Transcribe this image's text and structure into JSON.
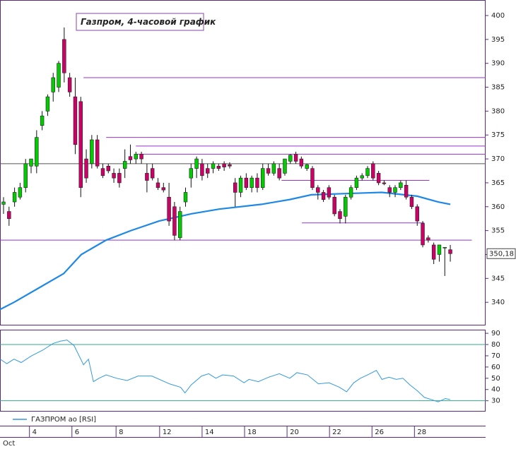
{
  "chart_data": [
    {
      "type": "candlestick",
      "title": "Газпром, 4-часовой график",
      "open": [
        360.5,
        359,
        361,
        362,
        364,
        368.5,
        368.5,
        377,
        380,
        384,
        385,
        395,
        387,
        383,
        382,
        370,
        369,
        374,
        368,
        368.5,
        367,
        367,
        368,
        370.5,
        370,
        371,
        367,
        368,
        365,
        364,
        362,
        360,
        353.5,
        361,
        366,
        368,
        369,
        368,
        368,
        368.5,
        369,
        368.8,
        365,
        363,
        366,
        364,
        366,
        364,
        368,
        367,
        368,
        367,
        369.5,
        371,
        370,
        368,
        368,
        364,
        363,
        364,
        362,
        359,
        358,
        362,
        364,
        366,
        366.5,
        369,
        367,
        365,
        364,
        363,
        364,
        364.5,
        362,
        360,
        356.5,
        353.5,
        352,
        350,
        351.5,
        351
      ],
      "high": [
        362,
        360,
        364,
        365,
        370,
        370,
        376,
        380,
        383.5,
        388,
        390.5,
        397.5,
        388,
        387,
        383,
        372,
        375,
        375,
        369,
        369,
        368,
        368,
        372,
        373,
        371.5,
        371.5,
        369,
        369,
        366,
        365,
        365,
        361,
        360,
        364,
        369,
        370.5,
        370,
        369,
        369.5,
        369,
        369.5,
        369.3,
        366,
        366.5,
        367,
        366.5,
        367,
        369,
        369,
        369.5,
        369,
        370,
        371,
        371.5,
        370.5,
        369,
        368.5,
        364.5,
        363.5,
        364.5,
        362.5,
        359.5,
        362.5,
        364.5,
        366.5,
        367,
        368.5,
        369.5,
        367.5,
        365.5,
        364.5,
        364.5,
        365.5,
        365.5,
        362.5,
        360.5,
        357,
        354,
        352.5,
        352,
        351.5,
        352
      ],
      "low": [
        358.5,
        356,
        360,
        361.5,
        363,
        367,
        367,
        376,
        379,
        382,
        384,
        386,
        383,
        371,
        362,
        365,
        368,
        368,
        366,
        367,
        365,
        364,
        366,
        369,
        369,
        369,
        363,
        365.5,
        363.5,
        363,
        356,
        353,
        353,
        360,
        364,
        366,
        365.5,
        366,
        367,
        367.5,
        367.5,
        368,
        360,
        362,
        363.5,
        363,
        363,
        363.5,
        366.5,
        366.5,
        365.5,
        366.5,
        369,
        369,
        368,
        367.5,
        363.5,
        361.5,
        361,
        361.5,
        358,
        356.5,
        356.5,
        361.5,
        363.5,
        365.5,
        366,
        365.5,
        364.5,
        364.5,
        362,
        362,
        363.5,
        361.5,
        359.5,
        356,
        351.5,
        352.5,
        348,
        348.5,
        345.5,
        348.5
      ],
      "close": [
        361,
        357.5,
        363,
        364,
        369,
        370,
        374.5,
        379,
        383,
        387,
        390,
        388,
        384,
        373,
        364,
        366,
        374,
        368.5,
        366.5,
        367.5,
        366,
        365,
        369.5,
        369.8,
        371,
        370,
        365.5,
        366,
        364,
        363.5,
        357,
        354,
        359,
        363,
        368,
        370,
        366.5,
        367,
        369,
        368,
        368.3,
        368.5,
        363,
        366,
        364,
        366,
        364,
        368,
        367,
        369,
        366,
        370,
        370.8,
        369.5,
        368.5,
        368.8,
        364,
        363,
        361.5,
        362,
        358.5,
        357.5,
        362,
        364,
        366,
        366.5,
        368,
        366,
        365,
        364.8,
        363,
        364,
        365,
        362,
        360,
        357,
        352,
        353,
        349,
        352,
        351.5,
        350.18
      ],
      "up_color": "#00cc00",
      "down_color": "#cc0066",
      "ma": {
        "color": "#1e88e5",
        "x": [
          -0.64,
          1.9,
          6.4,
          10.9,
          14.1,
          18.6,
          23.1,
          28.2,
          34,
          39.1,
          46.8,
          51.9,
          55.8,
          63.5,
          68.6,
          75,
          78.8,
          81
        ],
        "values": [
          338.5,
          340,
          343,
          346,
          350,
          353,
          355,
          357,
          358.5,
          359.5,
          360.5,
          361.5,
          362.5,
          362.8,
          363,
          362.2,
          361,
          360.5
        ]
      },
      "levels": [
        {
          "y": 387,
          "x0": 14.5,
          "x1": 87.4,
          "color": "#9933cc"
        },
        {
          "y": 374.5,
          "x0": 18.6,
          "x1": 87.4,
          "color": "#9933cc"
        },
        {
          "y": 372.7,
          "x0": 24,
          "x1": 87.4,
          "color": "#9933cc"
        },
        {
          "y": 371,
          "x0": 24,
          "x1": 87.4,
          "color": "#9933cc"
        },
        {
          "y": 369,
          "x0": -0.64,
          "x1": 87.4,
          "color": "#555555"
        },
        {
          "y": 365.5,
          "x0": 50.4,
          "x1": 77.2,
          "color": "#9933cc"
        },
        {
          "y": 356.6,
          "x0": 54.1,
          "x1": 76.3,
          "color": "#9933cc"
        },
        {
          "y": 353,
          "x0": -0.64,
          "x1": 84.9,
          "color": "#9933cc"
        }
      ],
      "last_price": {
        "value": 350.18,
        "label": "350,18"
      },
      "xlim": [
        -0.64,
        87.4
      ],
      "ylim": [
        335.3,
        403.25
      ],
      "yticks": [
        340,
        345,
        350,
        355,
        360,
        365,
        370,
        375,
        380,
        385,
        390,
        395,
        400
      ]
    },
    {
      "type": "line",
      "series": [
        {
          "name": "ГАЗПРОМ ao [RSI]",
          "color": "#3399dd",
          "x": [
            -0.6,
            0.6,
            1.9,
            3.2,
            5.1,
            7.1,
            9,
            10.3,
            11.5,
            12.8,
            14.5,
            15.4,
            16.3,
            17.3,
            18.6,
            20.5,
            22.4,
            24.4,
            26.9,
            30.1,
            32.1,
            32.9,
            34,
            35.9,
            37.2,
            38.5,
            39.7,
            41.7,
            43.6,
            44.5,
            46.2,
            48.1,
            50,
            51.9,
            53.2,
            55.1,
            57.1,
            59,
            60.9,
            62.2,
            63.5,
            64.7,
            66,
            67.6,
            68.6,
            69.9,
            71.2,
            72.4,
            73.7,
            75,
            76.3,
            77.6,
            78.8,
            80.1,
            81
          ],
          "values": [
            67,
            63,
            67,
            64,
            70,
            75,
            81,
            83,
            84,
            79,
            62,
            67,
            47,
            50,
            53,
            50,
            48,
            52,
            52,
            45,
            42,
            37,
            44,
            52,
            54,
            50,
            53,
            52,
            46,
            49,
            47,
            51,
            54,
            50,
            55,
            53,
            45,
            46,
            42,
            38,
            46,
            50,
            53,
            57,
            49,
            51,
            49,
            50,
            44,
            39,
            33,
            31,
            29,
            32,
            31
          ]
        }
      ],
      "ref_lines": [
        80,
        30
      ],
      "ref_color": "#33aa88",
      "xlim": [
        -0.64,
        87.4
      ],
      "ylim": [
        21,
        93.2
      ],
      "yticks": [
        30,
        40,
        50,
        60,
        70,
        80,
        90
      ],
      "xticks": [
        {
          "value": 4.7,
          "label": "4"
        },
        {
          "value": 12.4,
          "label": "6"
        },
        {
          "value": 20.4,
          "label": "8"
        },
        {
          "value": 28.3,
          "label": "12"
        },
        {
          "value": 36,
          "label": "14"
        },
        {
          "value": 43.7,
          "label": "18"
        },
        {
          "value": 51.4,
          "label": "20"
        },
        {
          "value": 59.1,
          "label": "22"
        },
        {
          "value": 66.8,
          "label": "26"
        },
        {
          "value": 74.5,
          "label": "28"
        }
      ],
      "x_period_label": "Oct"
    }
  ]
}
